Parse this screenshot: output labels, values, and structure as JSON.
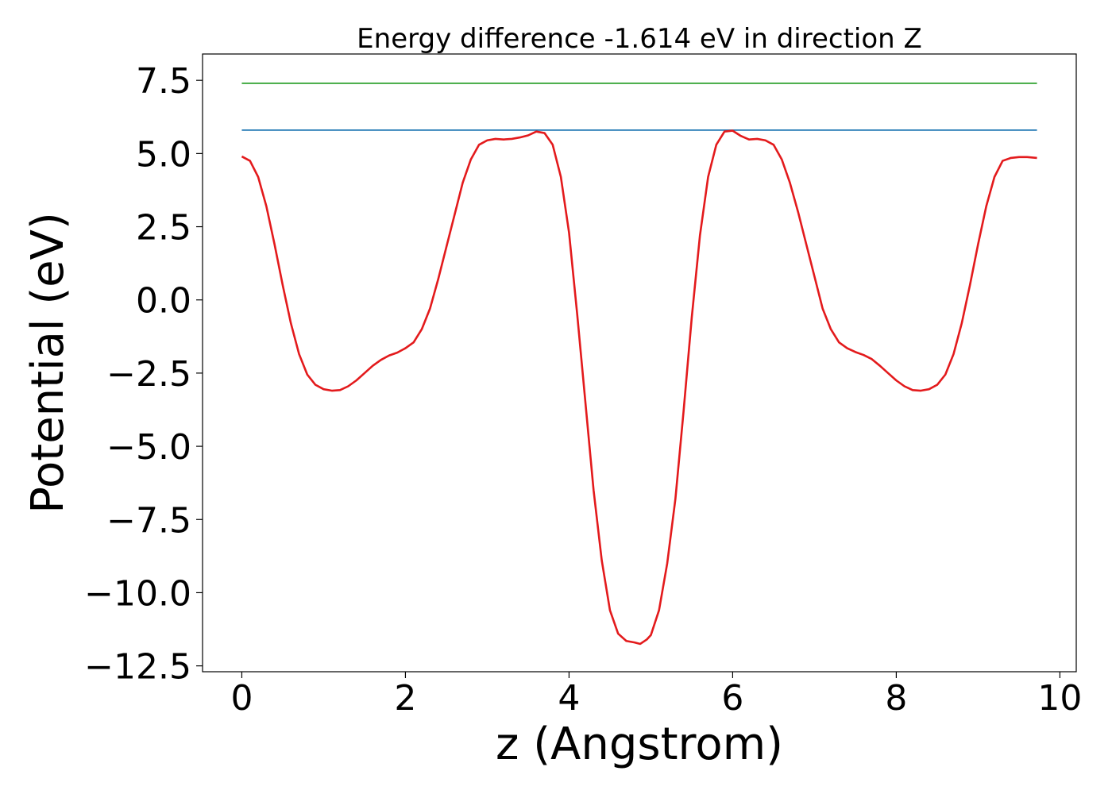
{
  "chart_data": {
    "type": "line",
    "title": "Energy difference -1.614 eV in direction Z",
    "xlabel": "z (Angstrom)",
    "ylabel": "Potential (eV)",
    "xlim": [
      -0.48,
      10.2
    ],
    "ylim": [
      -12.7,
      8.4
    ],
    "grid": false,
    "x_ticks": [
      0,
      2,
      4,
      6,
      8,
      10
    ],
    "x_tick_labels": [
      "0",
      "2",
      "4",
      "6",
      "8",
      "10"
    ],
    "y_ticks": [
      7.5,
      5.0,
      2.5,
      0.0,
      -2.5,
      -5.0,
      -7.5,
      -10.0,
      -12.5
    ],
    "y_tick_labels": [
      "7.5",
      "5.0",
      "2.5",
      "0.0",
      "−2.5",
      "−5.0",
      "−7.5",
      "−10.0",
      "−12.5"
    ],
    "series": [
      {
        "color": "#2ca02c",
        "x": [
          0,
          9.72
        ],
        "y": [
          7.4,
          7.4
        ]
      },
      {
        "color": "#1f77b4",
        "x": [
          0,
          9.72
        ],
        "y": [
          5.8,
          5.8
        ]
      },
      {
        "color": "#e31a1c",
        "x": [
          0,
          0.1,
          0.2,
          0.3,
          0.4,
          0.5,
          0.6,
          0.7,
          0.8,
          0.9,
          1.0,
          1.1,
          1.2,
          1.3,
          1.4,
          1.5,
          1.6,
          1.7,
          1.8,
          1.9,
          2.0,
          2.1,
          2.2,
          2.3,
          2.4,
          2.5,
          2.6,
          2.7,
          2.8,
          2.9,
          3.0,
          3.1,
          3.2,
          3.3,
          3.4,
          3.5,
          3.6,
          3.7,
          3.8,
          3.9,
          4.0,
          4.1,
          4.2,
          4.3,
          4.4,
          4.5,
          4.6,
          4.7,
          4.8,
          4.87,
          4.95,
          5.0,
          5.1,
          5.2,
          5.3,
          5.4,
          5.5,
          5.6,
          5.7,
          5.8,
          5.9,
          6.0,
          6.1,
          6.2,
          6.3,
          6.4,
          6.5,
          6.6,
          6.7,
          6.8,
          6.9,
          7.0,
          7.1,
          7.2,
          7.3,
          7.4,
          7.5,
          7.6,
          7.7,
          7.8,
          7.9,
          8.0,
          8.1,
          8.2,
          8.3,
          8.4,
          8.5,
          8.6,
          8.7,
          8.8,
          8.9,
          9.0,
          9.1,
          9.2,
          9.3,
          9.4,
          9.5,
          9.6,
          9.72
        ],
        "y": [
          4.9,
          4.75,
          4.2,
          3.2,
          1.9,
          0.5,
          -0.8,
          -1.85,
          -2.55,
          -2.9,
          -3.05,
          -3.1,
          -3.08,
          -2.95,
          -2.75,
          -2.5,
          -2.25,
          -2.05,
          -1.9,
          -1.8,
          -1.65,
          -1.45,
          -1.0,
          -0.3,
          0.7,
          1.8,
          2.9,
          4.0,
          4.8,
          5.3,
          5.45,
          5.5,
          5.48,
          5.5,
          5.55,
          5.62,
          5.75,
          5.7,
          5.3,
          4.2,
          2.3,
          -0.5,
          -3.5,
          -6.5,
          -8.9,
          -10.6,
          -11.4,
          -11.65,
          -11.7,
          -11.75,
          -11.6,
          -11.45,
          -10.6,
          -9.0,
          -6.8,
          -3.8,
          -0.6,
          2.2,
          4.2,
          5.3,
          5.75,
          5.78,
          5.6,
          5.48,
          5.5,
          5.45,
          5.3,
          4.8,
          4.0,
          3.0,
          1.9,
          0.8,
          -0.3,
          -1.0,
          -1.45,
          -1.65,
          -1.78,
          -1.88,
          -2.02,
          -2.25,
          -2.5,
          -2.75,
          -2.95,
          -3.08,
          -3.1,
          -3.05,
          -2.9,
          -2.55,
          -1.85,
          -0.8,
          0.5,
          1.9,
          3.2,
          4.2,
          4.75,
          4.85,
          4.88,
          4.88,
          4.85
        ]
      }
    ]
  }
}
